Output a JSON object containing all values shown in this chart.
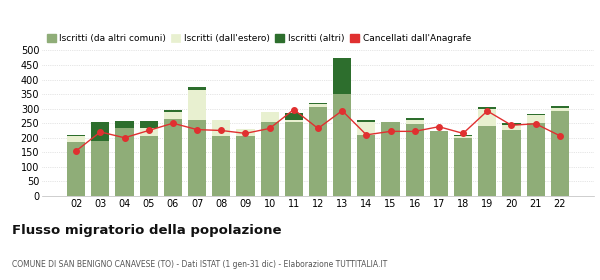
{
  "years": [
    "02",
    "03",
    "04",
    "05",
    "06",
    "07",
    "08",
    "09",
    "10",
    "11",
    "12",
    "13",
    "14",
    "15",
    "16",
    "17",
    "18",
    "19",
    "20",
    "21",
    "22"
  ],
  "iscritti_altri_comuni": [
    185,
    190,
    235,
    205,
    265,
    260,
    205,
    205,
    255,
    255,
    305,
    350,
    210,
    255,
    248,
    222,
    200,
    240,
    225,
    250,
    293
  ],
  "iscritti_estero": [
    20,
    0,
    0,
    30,
    25,
    105,
    55,
    25,
    33,
    5,
    10,
    0,
    45,
    0,
    12,
    0,
    5,
    58,
    20,
    28,
    10
  ],
  "iscritti_altri": [
    5,
    65,
    22,
    22,
    5,
    10,
    0,
    0,
    0,
    25,
    5,
    125,
    5,
    0,
    8,
    0,
    5,
    8,
    5,
    5,
    5
  ],
  "cancellati": [
    155,
    220,
    200,
    225,
    250,
    228,
    225,
    215,
    232,
    297,
    232,
    293,
    210,
    222,
    222,
    238,
    215,
    292,
    243,
    248,
    207
  ],
  "color_altri_comuni": "#8fad78",
  "color_estero": "#e8f0d0",
  "color_altri": "#2d6e2d",
  "color_cancellati": "#e03030",
  "title": "Flusso migratorio della popolazione",
  "subtitle": "COMUNE DI SAN BENIGNO CANAVESE (TO) - Dati ISTAT (1 gen-31 dic) - Elaborazione TUTTITALIA.IT",
  "legend_labels": [
    "Iscritti (da altri comuni)",
    "Iscritti (dall'estero)",
    "Iscritti (altri)",
    "Cancellati dall'Anagrafe"
  ],
  "ylim": [
    0,
    500
  ],
  "yticks": [
    0,
    50,
    100,
    150,
    200,
    250,
    300,
    350,
    400,
    450,
    500
  ]
}
